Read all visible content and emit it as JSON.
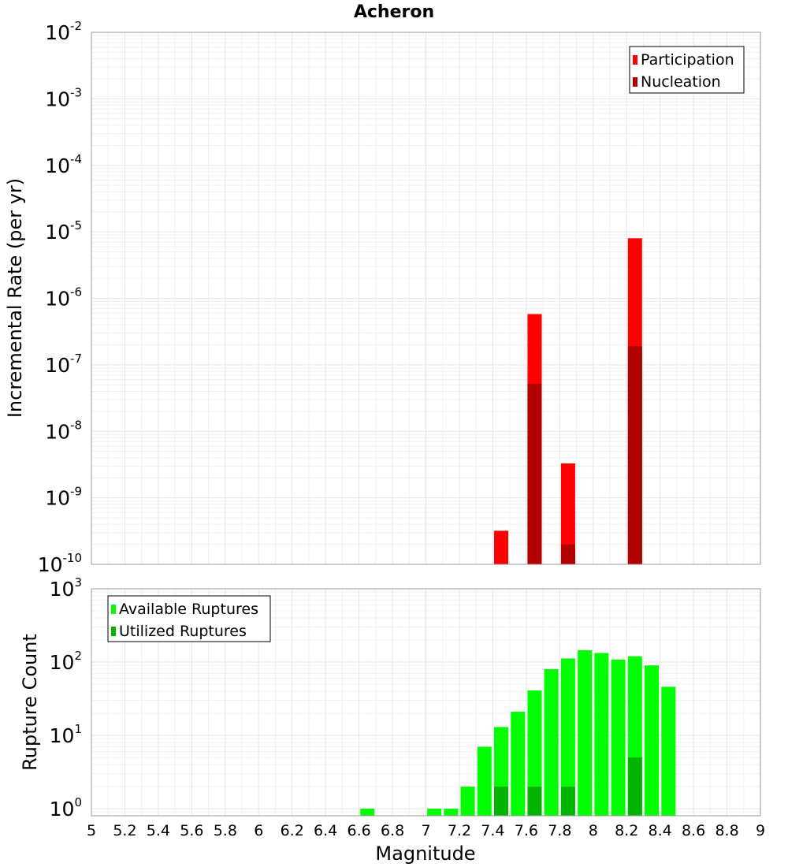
{
  "chart_data": [
    {
      "type": "bar",
      "title": "Acheron",
      "xlabel": "",
      "ylabel": "Incremental Rate (per yr)",
      "yscale": "log",
      "xlim": [
        5,
        9
      ],
      "ylim": [
        1e-10,
        0.01
      ],
      "ytick_base": "10",
      "ytick_exponents": [
        "-10",
        "-9",
        "-8",
        "-7",
        "-6",
        "-5",
        "-4",
        "-3",
        "-2"
      ],
      "grid": true,
      "legend_position": "top-right",
      "overlay_bars": true,
      "series": [
        {
          "name": "Participation",
          "color": "#ff0000",
          "x": [
            7.45,
            7.65,
            7.85,
            8.25
          ],
          "values": [
            3.2e-10,
            5.8e-07,
            3.3e-09,
            8e-06
          ]
        },
        {
          "name": "Nucleation",
          "color": "#b00000",
          "x": [
            7.65,
            7.85,
            8.25
          ],
          "values": [
            5.2e-08,
            2e-10,
            1.9e-07
          ]
        }
      ]
    },
    {
      "type": "bar",
      "xlabel": "Magnitude",
      "ylabel": "Rupture Count",
      "yscale": "log",
      "xlim": [
        5,
        9
      ],
      "ylim": [
        0.8,
        1000
      ],
      "ytick_base": "10",
      "ytick_exponents": [
        "0",
        "1",
        "2",
        "3"
      ],
      "xticks": [
        "5",
        "5.2",
        "5.4",
        "5.6",
        "5.8",
        "6",
        "6.2",
        "6.4",
        "6.6",
        "6.8",
        "7",
        "7.2",
        "7.4",
        "7.6",
        "7.8",
        "8",
        "8.2",
        "8.4",
        "8.6",
        "8.8",
        "9"
      ],
      "grid": true,
      "legend_position": "top-left",
      "overlay_bars": true,
      "series": [
        {
          "name": "Available Ruptures",
          "color": "#00ff00",
          "x": [
            6.65,
            7.05,
            7.15,
            7.25,
            7.35,
            7.45,
            7.55,
            7.65,
            7.75,
            7.85,
            7.95,
            8.05,
            8.15,
            8.25,
            8.35,
            8.45
          ],
          "values": [
            1,
            1,
            1,
            2,
            7,
            13,
            21,
            41,
            80,
            112,
            145,
            133,
            108,
            120,
            90,
            46
          ]
        },
        {
          "name": "Utilized Ruptures",
          "color": "#00b400",
          "x": [
            7.45,
            7.65,
            7.85,
            8.25
          ],
          "values": [
            2,
            2,
            2,
            5
          ]
        }
      ]
    }
  ]
}
